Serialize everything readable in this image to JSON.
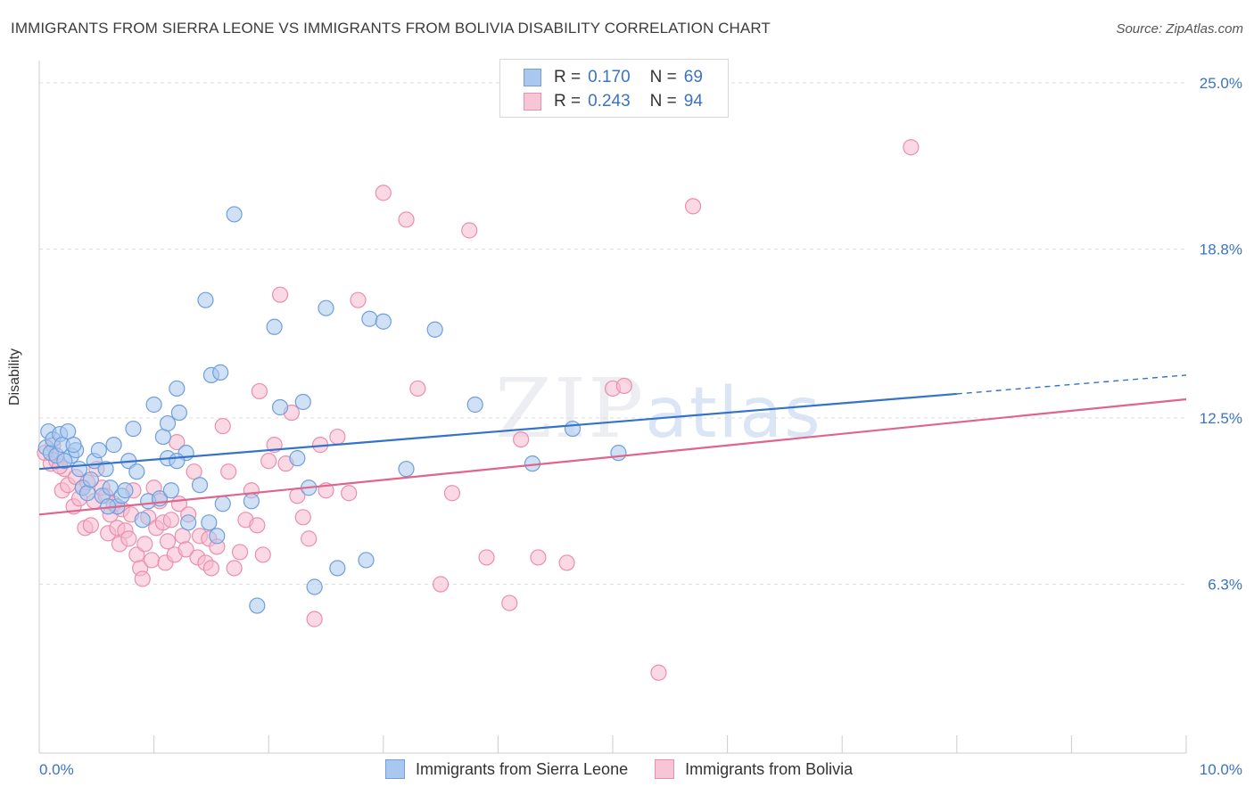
{
  "title": "IMMIGRANTS FROM SIERRA LEONE VS IMMIGRANTS FROM BOLIVIA DISABILITY CORRELATION CHART",
  "source": "Source: ZipAtlas.com",
  "watermark": {
    "zip": "ZIP",
    "atlas": "atlas"
  },
  "legend_top": [
    {
      "r_label": "R =",
      "r_value": "0.170",
      "n_label": "N =",
      "n_value": "69"
    },
    {
      "r_label": "R =",
      "r_value": "0.243",
      "n_label": "N =",
      "n_value": "94"
    }
  ],
  "colors": {
    "blue_fill": "#aac8ef",
    "blue_stroke": "#6f9fdc",
    "blue_line": "#3373c9",
    "pink_fill": "#f6b9cd",
    "pink_stroke": "#eb8fac",
    "pink_line": "#e0648c",
    "tick_label": "#3b73c4",
    "grid": "#dddddd"
  },
  "chart_data": {
    "type": "scatter",
    "title": "IMMIGRANTS FROM SIERRA LEONE VS IMMIGRANTS FROM BOLIVIA DISABILITY CORRELATION CHART",
    "xlabel": "",
    "ylabel": "Disability",
    "xlim": [
      0,
      10
    ],
    "ylim": [
      0,
      25.7
    ],
    "x_tick_labels": [
      "0.0%",
      "10.0%"
    ],
    "y_ticks": [
      6.3,
      12.5,
      18.8,
      25.0
    ],
    "y_tick_labels": [
      "6.3%",
      "12.5%",
      "18.8%",
      "25.0%"
    ],
    "grid": true,
    "legend_position": "top-center",
    "series": [
      {
        "name": "Immigrants from Sierra Leone",
        "color": "#aac8ef",
        "R": 0.17,
        "N": 69,
        "trend": {
          "x0": 0,
          "y0": 10.6,
          "x1": 8.0,
          "y1": 13.4,
          "dash_to_x": 10.0,
          "dash_to_y": 14.1
        },
        "points": [
          [
            0.06,
            11.4
          ],
          [
            0.08,
            12.0
          ],
          [
            0.1,
            11.2
          ],
          [
            0.12,
            11.7
          ],
          [
            0.15,
            11.1
          ],
          [
            0.18,
            11.9
          ],
          [
            0.2,
            11.5
          ],
          [
            0.25,
            12.0
          ],
          [
            0.28,
            11.1
          ],
          [
            0.32,
            11.3
          ],
          [
            0.35,
            10.6
          ],
          [
            0.38,
            9.9
          ],
          [
            0.42,
            9.7
          ],
          [
            0.45,
            10.2
          ],
          [
            0.48,
            10.9
          ],
          [
            0.52,
            11.3
          ],
          [
            0.55,
            9.6
          ],
          [
            0.58,
            10.6
          ],
          [
            0.62,
            9.9
          ],
          [
            0.65,
            11.5
          ],
          [
            0.68,
            9.2
          ],
          [
            0.72,
            9.6
          ],
          [
            0.78,
            10.9
          ],
          [
            0.82,
            12.1
          ],
          [
            0.85,
            10.5
          ],
          [
            0.9,
            8.7
          ],
          [
            0.95,
            9.4
          ],
          [
            1.0,
            13.0
          ],
          [
            1.05,
            9.5
          ],
          [
            1.08,
            11.8
          ],
          [
            1.12,
            11.0
          ],
          [
            1.15,
            9.8
          ],
          [
            1.2,
            13.6
          ],
          [
            1.22,
            12.7
          ],
          [
            1.28,
            11.2
          ],
          [
            1.3,
            8.6
          ],
          [
            1.4,
            10.0
          ],
          [
            1.48,
            8.6
          ],
          [
            1.5,
            14.1
          ],
          [
            1.55,
            8.1
          ],
          [
            1.6,
            9.3
          ],
          [
            1.7,
            20.1
          ],
          [
            1.85,
            9.4
          ],
          [
            1.9,
            5.5
          ],
          [
            2.05,
            15.9
          ],
          [
            2.1,
            12.9
          ],
          [
            2.25,
            11.0
          ],
          [
            2.3,
            13.1
          ],
          [
            2.35,
            9.9
          ],
          [
            2.4,
            6.2
          ],
          [
            2.5,
            16.6
          ],
          [
            2.6,
            6.9
          ],
          [
            2.85,
            7.2
          ],
          [
            2.88,
            16.2
          ],
          [
            3.0,
            16.1
          ],
          [
            3.2,
            10.6
          ],
          [
            3.45,
            15.8
          ],
          [
            3.8,
            13.0
          ],
          [
            4.3,
            10.8
          ],
          [
            4.65,
            12.1
          ],
          [
            5.05,
            11.2
          ],
          [
            0.3,
            11.5
          ],
          [
            0.22,
            10.9
          ],
          [
            1.45,
            16.9
          ],
          [
            1.58,
            14.2
          ],
          [
            1.12,
            12.3
          ],
          [
            0.6,
            9.2
          ],
          [
            0.75,
            9.8
          ],
          [
            1.2,
            10.9
          ]
        ]
      },
      {
        "name": "Immigrants from Bolivia",
        "color": "#f6b9cd",
        "R": 0.243,
        "N": 94,
        "trend": {
          "x0": 0,
          "y0": 8.9,
          "x1": 10.0,
          "y1": 13.2
        },
        "points": [
          [
            0.05,
            11.2
          ],
          [
            0.1,
            10.8
          ],
          [
            0.12,
            11.5
          ],
          [
            0.15,
            10.9
          ],
          [
            0.2,
            9.8
          ],
          [
            0.22,
            10.6
          ],
          [
            0.25,
            10.0
          ],
          [
            0.3,
            9.2
          ],
          [
            0.32,
            10.3
          ],
          [
            0.35,
            9.5
          ],
          [
            0.38,
            9.9
          ],
          [
            0.4,
            8.4
          ],
          [
            0.42,
            10.1
          ],
          [
            0.45,
            8.5
          ],
          [
            0.48,
            9.4
          ],
          [
            0.5,
            10.6
          ],
          [
            0.55,
            9.9
          ],
          [
            0.58,
            9.6
          ],
          [
            0.6,
            8.2
          ],
          [
            0.62,
            8.9
          ],
          [
            0.65,
            9.3
          ],
          [
            0.68,
            8.4
          ],
          [
            0.7,
            7.8
          ],
          [
            0.72,
            9.1
          ],
          [
            0.75,
            8.3
          ],
          [
            0.78,
            8.0
          ],
          [
            0.8,
            8.9
          ],
          [
            0.82,
            9.8
          ],
          [
            0.85,
            7.4
          ],
          [
            0.88,
            6.9
          ],
          [
            0.9,
            6.5
          ],
          [
            0.92,
            7.8
          ],
          [
            0.95,
            8.8
          ],
          [
            0.98,
            7.2
          ],
          [
            1.0,
            9.9
          ],
          [
            1.02,
            8.4
          ],
          [
            1.05,
            9.4
          ],
          [
            1.08,
            8.6
          ],
          [
            1.1,
            7.1
          ],
          [
            1.12,
            7.9
          ],
          [
            1.15,
            8.7
          ],
          [
            1.18,
            7.4
          ],
          [
            1.2,
            11.6
          ],
          [
            1.22,
            9.3
          ],
          [
            1.25,
            8.1
          ],
          [
            1.28,
            7.6
          ],
          [
            1.3,
            8.9
          ],
          [
            1.35,
            10.5
          ],
          [
            1.38,
            7.3
          ],
          [
            1.4,
            8.1
          ],
          [
            1.45,
            7.1
          ],
          [
            1.48,
            8.0
          ],
          [
            1.5,
            6.9
          ],
          [
            1.55,
            7.7
          ],
          [
            1.6,
            12.2
          ],
          [
            1.65,
            10.5
          ],
          [
            1.7,
            6.9
          ],
          [
            1.75,
            7.5
          ],
          [
            1.8,
            8.7
          ],
          [
            1.85,
            9.8
          ],
          [
            1.9,
            8.5
          ],
          [
            1.92,
            13.5
          ],
          [
            1.95,
            7.4
          ],
          [
            2.0,
            10.9
          ],
          [
            2.05,
            11.5
          ],
          [
            2.1,
            17.1
          ],
          [
            2.15,
            10.8
          ],
          [
            2.2,
            12.7
          ],
          [
            2.25,
            9.6
          ],
          [
            2.3,
            8.8
          ],
          [
            2.35,
            8.0
          ],
          [
            2.4,
            5.0
          ],
          [
            2.45,
            11.5
          ],
          [
            2.5,
            9.8
          ],
          [
            2.6,
            11.8
          ],
          [
            2.7,
            9.7
          ],
          [
            2.78,
            16.9
          ],
          [
            3.0,
            20.9
          ],
          [
            3.2,
            19.9
          ],
          [
            3.3,
            13.6
          ],
          [
            3.5,
            6.3
          ],
          [
            3.6,
            9.7
          ],
          [
            3.75,
            19.5
          ],
          [
            3.9,
            7.3
          ],
          [
            4.1,
            5.6
          ],
          [
            4.2,
            11.7
          ],
          [
            4.35,
            7.3
          ],
          [
            4.6,
            7.1
          ],
          [
            5.0,
            13.6
          ],
          [
            5.1,
            13.7
          ],
          [
            5.4,
            3.0
          ],
          [
            5.7,
            20.4
          ],
          [
            7.6,
            22.6
          ],
          [
            0.18,
            10.7
          ]
        ]
      }
    ]
  },
  "bottom_legend": [
    "Immigrants from Sierra Leone",
    "Immigrants from Bolivia"
  ]
}
